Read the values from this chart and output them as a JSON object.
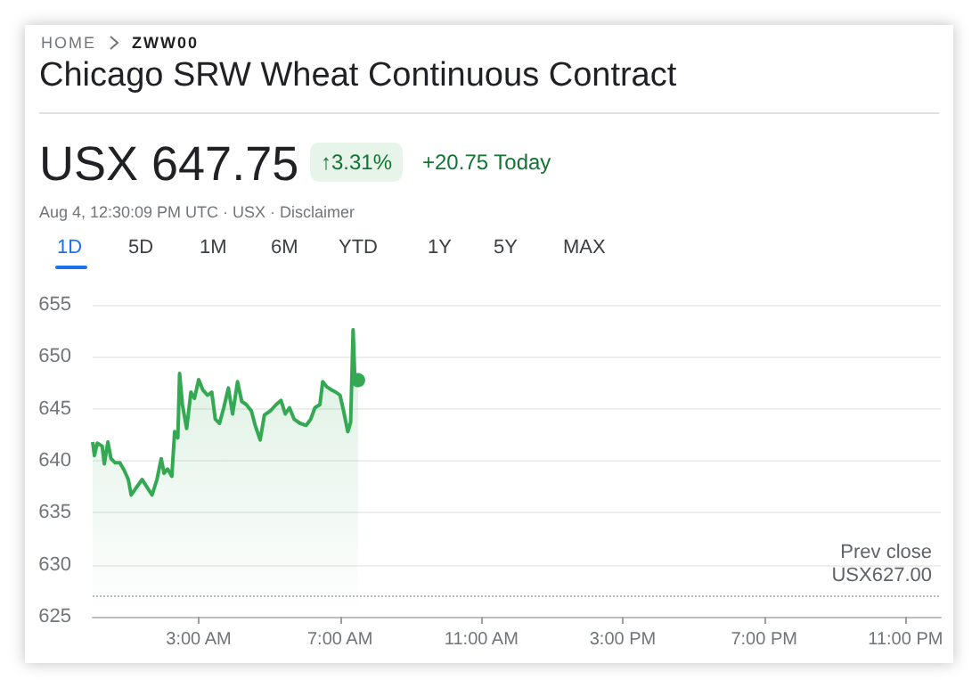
{
  "chart_data": {
    "type": "area",
    "title": "Chicago SRW Wheat Continuous Contract",
    "subtitle": "Aug 4, 12:30:09 PM UTC · USX · Disclaimer",
    "annotations": [
      "HOME",
      "ZWW00",
      "USX 647.75",
      "↑3.31%",
      "+20.75 Today",
      "1D",
      "5D",
      "1M",
      "6M",
      "YTD",
      "1Y",
      "5Y",
      "MAX"
    ],
    "x": [
      0,
      0.05,
      0.13,
      0.27,
      0.33,
      0.43,
      0.52,
      0.64,
      0.77,
      0.89,
      1.01,
      1.09,
      1.23,
      1.4,
      1.53,
      1.68,
      1.82,
      1.94,
      2.02,
      2.12,
      2.24,
      2.32,
      2.41,
      2.46,
      2.54,
      2.66,
      2.78,
      2.88,
      3.0,
      3.12,
      3.25,
      3.37,
      3.47,
      3.59,
      3.71,
      3.84,
      3.96,
      4.1,
      4.22,
      4.35,
      4.49,
      4.6,
      4.74,
      4.86,
      5.03,
      5.19,
      5.33,
      5.45,
      5.57,
      5.7,
      5.87,
      6.04,
      6.17,
      6.29,
      6.43,
      6.51,
      6.63,
      6.76,
      6.88,
      7.0,
      7.1,
      7.22,
      7.3,
      7.37,
      7.42,
      7.51
    ],
    "values": [
      641.8,
      640.5,
      641.7,
      641.4,
      639.7,
      641.8,
      640.2,
      639.8,
      639.8,
      639.1,
      638.2,
      636.7,
      637.4,
      638.2,
      637.5,
      636.7,
      638.2,
      640.2,
      638.8,
      639.2,
      638.5,
      642.8,
      642.2,
      648.4,
      645.4,
      643.1,
      646.6,
      646.0,
      647.8,
      646.8,
      646.3,
      646.6,
      644.0,
      643.6,
      645.1,
      647.0,
      644.5,
      647.6,
      645.7,
      645.4,
      644.8,
      643.4,
      642.0,
      644.4,
      644.8,
      645.4,
      645.8,
      644.5,
      645.1,
      644.0,
      643.6,
      643.4,
      644.0,
      645.1,
      645.4,
      647.6,
      647.1,
      646.8,
      646.6,
      646.3,
      644.8,
      642.8,
      643.7,
      652.6,
      647.7,
      647.75
    ],
    "color": "#34a853",
    "xlim": [
      0,
      24
    ],
    "xticks": [
      {
        "value": 3,
        "label": "3:00 AM"
      },
      {
        "value": 7,
        "label": "7:00 AM"
      },
      {
        "value": 11,
        "label": "11:00 AM"
      },
      {
        "value": 15,
        "label": "3:00 PM"
      },
      {
        "value": 19,
        "label": "7:00 PM"
      },
      {
        "value": 23,
        "label": "11:00 PM"
      }
    ],
    "ylim": [
      625,
      655
    ],
    "yticks": [
      625,
      630,
      635,
      640,
      645,
      650,
      655
    ],
    "grid": "y",
    "ref_lines": [
      {
        "axis": "y",
        "value": 627,
        "label": "Prev close\nUSX627.00",
        "line_style": "dotted",
        "color": "#bdbdbd"
      }
    ]
  }
}
